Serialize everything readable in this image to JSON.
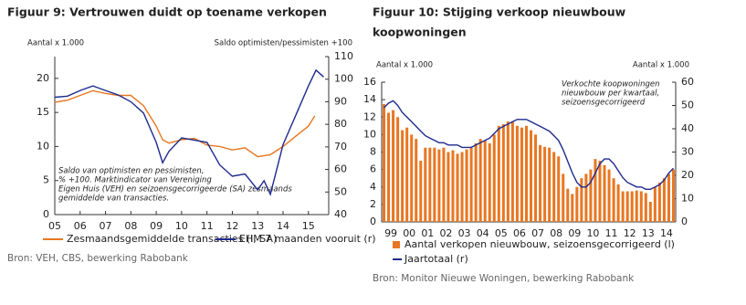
{
  "chart_data": [
    {
      "type": "line",
      "title": "Figuur 9: Vertrouwen duidt op toename verkopen",
      "ylabel": "Aantal x 1.000",
      "y2label": "Saldo optimisten/pessimisten +100",
      "note": [
        "Saldo van optimisten en pessimisten,",
        "% +100. Marktindicator van Vereniging",
        "Eigen Huis (VEH) en seizoensgecorrigeerde (SA) zesmaands",
        "gemiddelde van transacties."
      ],
      "source": "Bron: VEH, CBS, bewerking Rabobank",
      "xlim": [
        2005,
        2015.8
      ],
      "xticks": [
        {
          "value": 2005,
          "label": "05"
        },
        {
          "value": 2006,
          "label": "06"
        },
        {
          "value": 2007,
          "label": "07"
        },
        {
          "value": 2008,
          "label": "08"
        },
        {
          "value": 2009,
          "label": "09"
        },
        {
          "value": 2010,
          "label": "10"
        },
        {
          "value": 2011,
          "label": "11"
        },
        {
          "value": 2012,
          "label": "12"
        },
        {
          "value": 2013,
          "label": "13"
        },
        {
          "value": 2014,
          "label": "14"
        },
        {
          "value": 2015,
          "label": "15"
        }
      ],
      "ylim": [
        0,
        23.2
      ],
      "yticks": [
        0,
        5,
        10,
        15,
        20
      ],
      "y2lim": [
        40,
        110
      ],
      "y2ticks": [
        40,
        50,
        60,
        70,
        80,
        90,
        100,
        110
      ],
      "series": [
        {
          "name": "Zesmaandsgemiddelde transacties (l, SA)",
          "color": "#e87722",
          "x": [
            2005,
            2005.5,
            2006,
            2006.5,
            2007,
            2007.5,
            2008,
            2008.5,
            2009,
            2009.25,
            2009.5,
            2010,
            2010.5,
            2011,
            2011.5,
            2012,
            2012.5,
            2013,
            2013.5,
            2014,
            2014.5,
            2015,
            2015.25
          ],
          "values": [
            16.5,
            16.8,
            17.5,
            18.2,
            17.8,
            17.5,
            17.5,
            16.0,
            13.0,
            11.0,
            10.5,
            11.0,
            11.2,
            10.2,
            10.0,
            9.5,
            9.8,
            8.5,
            8.8,
            10.0,
            11.5,
            13.0,
            14.5
          ]
        },
        {
          "name": "EHM 7 maanden vooruit (r)",
          "color": "#1f2a8c",
          "axis": "y2",
          "x": [
            2005,
            2005.5,
            2006,
            2006.5,
            2007,
            2007.5,
            2008,
            2008.5,
            2009,
            2009.25,
            2009.5,
            2010,
            2010.5,
            2011,
            2011.5,
            2012,
            2012.5,
            2013,
            2013.25,
            2013.5,
            2014,
            2014.5,
            2015,
            2015.3,
            2015.6
          ],
          "values": [
            92,
            92.5,
            95,
            97,
            95,
            93,
            90,
            85,
            72,
            63,
            68,
            74,
            73,
            72,
            62,
            57,
            58,
            51,
            55,
            49,
            71,
            84,
            97,
            104,
            101
          ]
        }
      ]
    },
    {
      "type": "bar",
      "title": [
        "Figuur 10: Stijging verkoop nieuwbouw",
        "koopwoningen"
      ],
      "ylabel": "Aantal x 1.000",
      "y2label": "Aantal x 1.000",
      "note": [
        "Verkochte koopwoningen",
        "nieuwbouw per kwartaal,",
        "seizoensgecorrigeerd"
      ],
      "source": "Bron: Monitor Nieuwe Woningen, bewerking Rabobank",
      "categories": [
        null,
        "99",
        null,
        null,
        null,
        "00",
        null,
        null,
        null,
        "01",
        null,
        null,
        null,
        "02",
        null,
        null,
        null,
        "03",
        null,
        null,
        null,
        "04",
        null,
        null,
        null,
        "05",
        null,
        null,
        null,
        "06",
        null,
        null,
        null,
        "07",
        null,
        null,
        null,
        "08",
        null,
        null,
        null,
        "09",
        null,
        null,
        null,
        "10",
        null,
        null,
        null,
        "11",
        null,
        null,
        null,
        "12",
        null,
        null,
        null,
        "13",
        null,
        null,
        null,
        "14",
        null,
        null
      ],
      "ylim": [
        0,
        16
      ],
      "yticks": [
        0,
        2,
        4,
        6,
        8,
        10,
        12,
        14,
        16
      ],
      "y2lim": [
        0,
        60
      ],
      "y2ticks": [
        0,
        10,
        20,
        30,
        40,
        50,
        60
      ],
      "series": [
        {
          "name": "Aantal verkopen nieuwbouw, seizoensgecorrigeerd (l)",
          "color": "#e87722",
          "values": [
            13.5,
            12.5,
            12.8,
            12.0,
            10.5,
            10.8,
            10.0,
            9.5,
            7.0,
            8.5,
            8.5,
            8.5,
            8.3,
            8.5,
            8.0,
            8.2,
            7.8,
            8.0,
            8.3,
            8.5,
            9.0,
            9.5,
            9.3,
            9.0,
            10.0,
            11.0,
            11.2,
            11.5,
            11.5,
            11.0,
            10.8,
            11.0,
            10.5,
            10.0,
            8.8,
            8.6,
            8.5,
            8.0,
            7.5,
            5.5,
            3.8,
            3.2,
            4.0,
            5.0,
            5.5,
            6.0,
            7.2,
            7.0,
            6.5,
            6.0,
            5.0,
            4.3,
            3.5,
            3.5,
            3.5,
            3.6,
            3.5,
            3.3,
            2.3,
            4.0,
            4.5,
            5.0,
            5.5,
            6.0
          ]
        },
        {
          "name": "Jaartotaal (r)",
          "color": "#1f2a8c",
          "axis": "y2",
          "values": [
            49,
            51,
            52,
            50,
            47,
            45,
            43,
            41,
            39,
            37,
            36,
            35,
            34,
            34,
            33,
            33,
            33,
            32,
            32,
            32,
            33,
            34,
            35,
            36,
            38,
            40,
            41,
            42,
            43,
            44,
            44,
            44,
            43,
            42,
            41,
            40,
            39,
            37,
            35,
            31,
            26,
            21,
            17,
            15,
            15,
            17,
            21,
            25,
            27,
            27,
            25,
            22,
            19,
            17,
            16,
            15,
            15,
            14,
            14,
            15,
            16,
            18,
            21,
            23
          ]
        }
      ]
    }
  ]
}
